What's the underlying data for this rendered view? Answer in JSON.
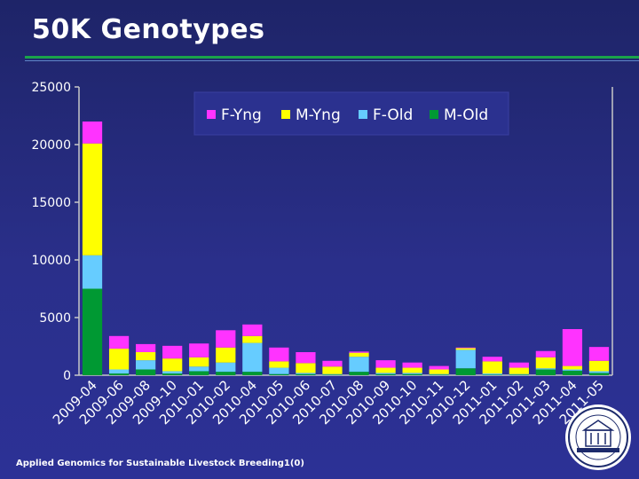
{
  "slide": {
    "title": "50K Genotypes",
    "footer": "Applied Genomics for Sustainable Livestock Breeding",
    "page_number": "1(0)"
  },
  "colors": {
    "F-Yng": "#ff33ff",
    "M-Yng": "#ffff00",
    "F-Old": "#66ccff",
    "M-Old": "#009933"
  },
  "chart_data": {
    "type": "bar",
    "stacked": true,
    "categories": [
      "2009-04",
      "2009-06",
      "2009-08",
      "2009-10",
      "2010-01",
      "2010-02",
      "2010-04",
      "2010-05",
      "2010-06",
      "2010-07",
      "2010-08",
      "2010-09",
      "2010-10",
      "2010-11",
      "2010-12",
      "2011-01",
      "2011-02",
      "2011-03",
      "2011-04",
      "2011-05"
    ],
    "series": [
      {
        "name": "M-Old",
        "values": [
          7500,
          150,
          500,
          150,
          350,
          300,
          300,
          100,
          100,
          50,
          300,
          100,
          100,
          50,
          600,
          50,
          50,
          500,
          400,
          200
        ]
      },
      {
        "name": "F-Old",
        "values": [
          2900,
          350,
          800,
          200,
          400,
          800,
          2500,
          550,
          100,
          50,
          1300,
          100,
          100,
          50,
          1600,
          100,
          50,
          100,
          100,
          150
        ]
      },
      {
        "name": "M-Yng",
        "values": [
          9700,
          1800,
          700,
          1100,
          800,
          1300,
          600,
          550,
          850,
          650,
          350,
          450,
          450,
          400,
          150,
          1050,
          550,
          950,
          300,
          900
        ]
      },
      {
        "name": "F-Yng",
        "values": [
          1900,
          1100,
          700,
          1100,
          1200,
          1500,
          1000,
          1200,
          950,
          500,
          100,
          650,
          450,
          300,
          50,
          400,
          450,
          550,
          3200,
          1200
        ]
      }
    ],
    "ylim": [
      0,
      25000
    ],
    "yticks": [
      0,
      5000,
      10000,
      15000,
      20000,
      25000
    ],
    "legend": [
      "F-Yng",
      "M-Yng",
      "F-Old",
      "M-Old"
    ],
    "legend_position": "top",
    "grid": false
  }
}
